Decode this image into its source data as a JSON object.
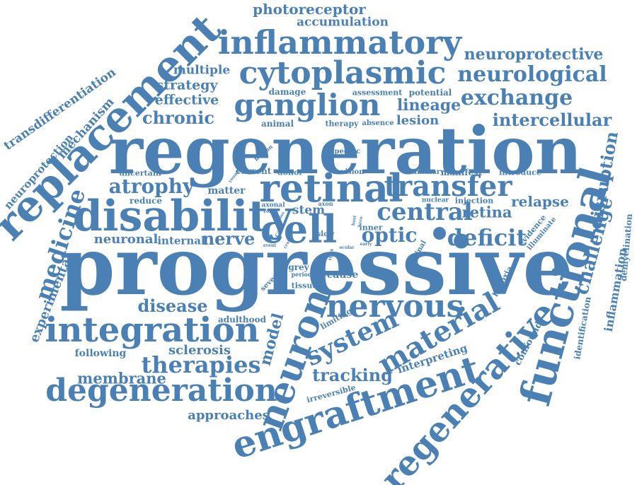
{
  "colors": {
    "word": "#4a80b4",
    "background": "#ffffff"
  },
  "words": [
    "progressive",
    "regeneration",
    "replacement",
    "functional",
    "disability",
    "retinal",
    "cell",
    "neuron",
    "engraftment",
    "regenerative",
    "integration",
    "degeneration",
    "inflammatory",
    "cytoplasmic",
    "ganglion",
    "transfer",
    "central",
    "nervous",
    "system",
    "material",
    "therapies",
    "medicine",
    "exchange",
    "neurological",
    "neuroprotective",
    "intercellular",
    "atrophy",
    "deficit",
    "optic",
    "disruption",
    "challenge",
    "inflammation",
    "transdifferentiation",
    "neuroprotection",
    "mechanism",
    "experimental",
    "model",
    "tracking",
    "membrane",
    "disease",
    "nerve",
    "neuronal",
    "approaches",
    "photoreceptor",
    "accumulation",
    "chronic",
    "effective",
    "strategy",
    "multiple",
    "lineage",
    "lesion",
    "retina",
    "relapse",
    "sclerosis",
    "following",
    "interpreting",
    "confound",
    "identification",
    "demyelination",
    "irreversible",
    "limiting",
    "hypoxia",
    "potential",
    "assessment",
    "damage",
    "animal",
    "therapy",
    "absence",
    "uncertain",
    "reduce",
    "matter",
    "stem",
    "internal",
    "adulthood",
    "grey",
    "tissue",
    "cause",
    "period",
    "severe",
    "specific",
    "human",
    "current",
    "donor",
    "vision",
    "summary",
    "manifest",
    "introduce",
    "nuclear",
    "injection",
    "evidence",
    "illuminate",
    "spinal",
    "inner",
    "axonal",
    "axon",
    "slow",
    "cord",
    "care",
    "young",
    "event",
    "rgcs",
    "host",
    "hero",
    "ocular",
    "loss",
    "cross",
    "early"
  ]
}
